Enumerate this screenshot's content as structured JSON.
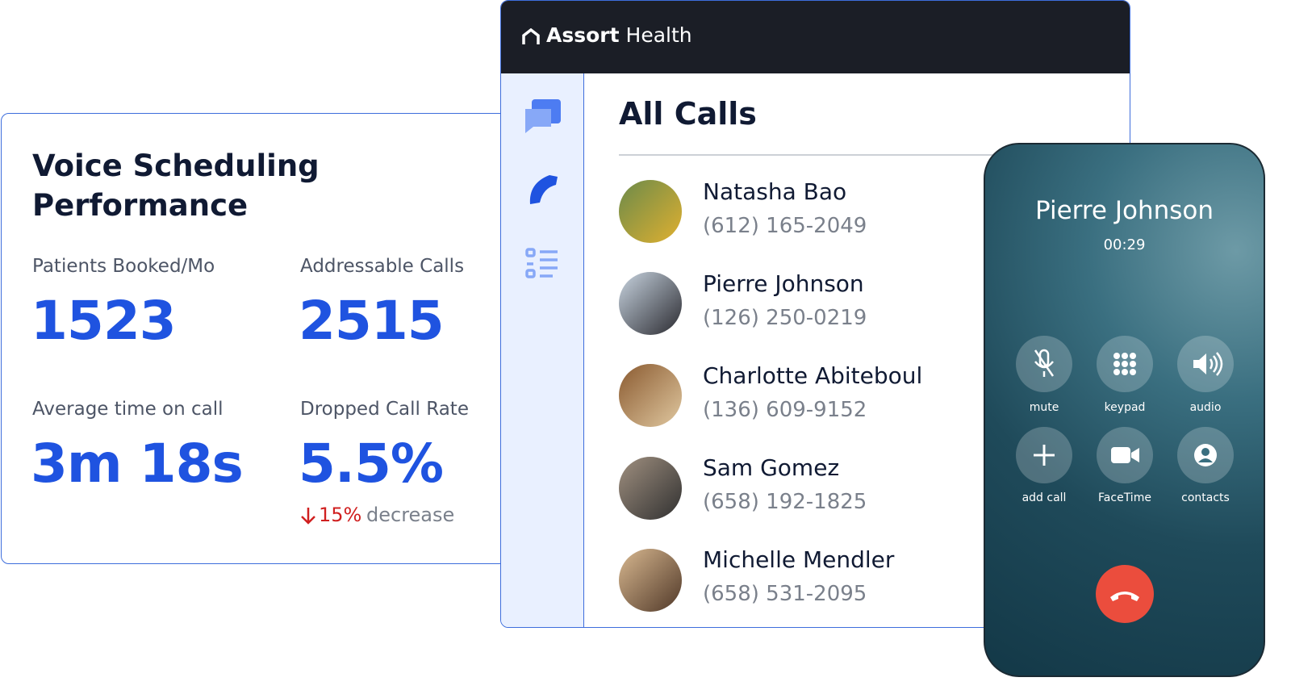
{
  "stats_card": {
    "title": "Voice Scheduling Performance",
    "metrics": [
      {
        "label": "Patients Booked/Mo",
        "value": "1523"
      },
      {
        "label": "Addressable Calls",
        "value": "2515"
      },
      {
        "label": "Average time on call",
        "value": "3m 18s"
      },
      {
        "label": "Dropped Call Rate",
        "value": "5.5%",
        "change": "15%",
        "change_text": "decrease"
      }
    ]
  },
  "app": {
    "brand": {
      "name": "Assort",
      "suffix": "Health"
    },
    "heading": "All Calls",
    "calls": [
      {
        "name": "Natasha Bao",
        "phone": "(612) 165-2049"
      },
      {
        "name": "Pierre Johnson",
        "phone": "(126) 250-0219"
      },
      {
        "name": "Charlotte Abiteboul",
        "phone": "(136) 609-9152"
      },
      {
        "name": "Sam Gomez",
        "phone": "(658) 192-1825"
      },
      {
        "name": "Michelle Mendler",
        "phone": "(658) 531-2095"
      }
    ]
  },
  "phone_call": {
    "caller": "Pierre Johnson",
    "duration": "00:29",
    "buttons": [
      "mute",
      "keypad",
      "audio",
      "add call",
      "FaceTime",
      "contacts"
    ]
  }
}
